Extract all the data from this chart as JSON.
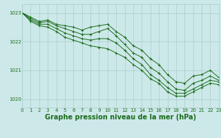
{
  "background_color": "#cce8e8",
  "grid_color": "#aacccc",
  "line_color": "#1a6b1a",
  "xlabel": "Graphe pression niveau de la mer (hPa)",
  "xlabel_fontsize": 7.0,
  "ylim": [
    1019.7,
    1023.3
  ],
  "xlim": [
    0,
    23
  ],
  "yticks": [
    1020,
    1021,
    1022,
    1023
  ],
  "xticks": [
    0,
    1,
    2,
    3,
    4,
    5,
    6,
    7,
    8,
    9,
    10,
    11,
    12,
    13,
    14,
    15,
    16,
    17,
    18,
    19,
    20,
    21,
    22,
    23
  ],
  "series": [
    [
      1023.0,
      1022.85,
      1022.7,
      1022.75,
      1022.6,
      1022.55,
      1022.5,
      1022.4,
      1022.5,
      1022.55,
      1022.6,
      1022.35,
      1022.15,
      1021.85,
      1021.7,
      1021.4,
      1021.2,
      1020.85,
      1020.6,
      1020.55,
      1020.8,
      1020.85,
      1021.0,
      1020.75
    ],
    [
      1023.0,
      1022.8,
      1022.65,
      1022.7,
      1022.55,
      1022.45,
      1022.35,
      1022.25,
      1022.25,
      1022.35,
      1022.45,
      1022.2,
      1021.9,
      1021.6,
      1021.45,
      1021.1,
      1020.9,
      1020.6,
      1020.35,
      1020.3,
      1020.55,
      1020.65,
      1020.8,
      1020.65
    ],
    [
      1023.0,
      1022.75,
      1022.6,
      1022.6,
      1022.45,
      1022.3,
      1022.2,
      1022.1,
      1022.05,
      1022.1,
      1022.1,
      1021.95,
      1021.7,
      1021.4,
      1021.2,
      1020.85,
      1020.65,
      1020.4,
      1020.2,
      1020.2,
      1020.35,
      1020.5,
      1020.65,
      1020.6
    ],
    [
      1023.0,
      1022.7,
      1022.55,
      1022.5,
      1022.35,
      1022.15,
      1022.05,
      1021.95,
      1021.85,
      1021.8,
      1021.75,
      1021.6,
      1021.45,
      1021.2,
      1021.0,
      1020.7,
      1020.55,
      1020.25,
      1020.1,
      1020.1,
      1020.25,
      1020.4,
      1020.55,
      1020.5
    ]
  ]
}
